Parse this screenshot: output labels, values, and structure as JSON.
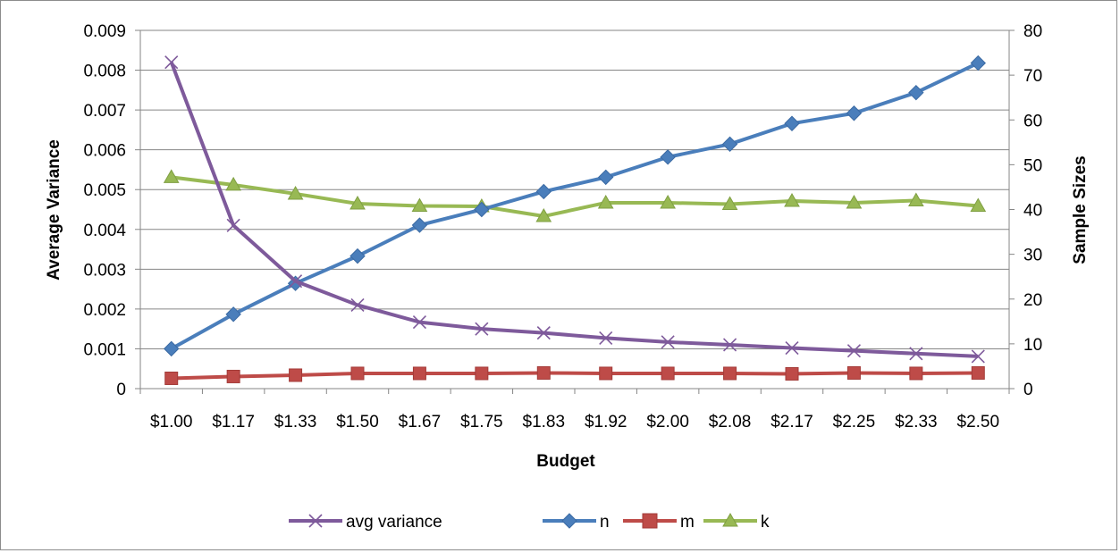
{
  "chart_data": {
    "type": "line",
    "title": "",
    "xlabel": "Budget",
    "ylabel_left": "Average Variance",
    "ylabel_right": "Sample Sizes",
    "categories": [
      "$1.00",
      "$1.17",
      "$1.33",
      "$1.50",
      "$1.67",
      "$1.75",
      "$1.83",
      "$1.92",
      "$2.00",
      "$2.08",
      "$2.17",
      "$2.25",
      "$2.33",
      "$2.50"
    ],
    "y_left": {
      "min": 0,
      "max": 0.009,
      "step": 0.001,
      "tick_labels": [
        "0",
        "0.001",
        "0.002",
        "0.003",
        "0.004",
        "0.005",
        "0.006",
        "0.007",
        "0.008",
        "0.009"
      ]
    },
    "y_right": {
      "min": 0,
      "max": 80,
      "step": 10,
      "tick_labels": [
        "0",
        "10",
        "20",
        "30",
        "40",
        "50",
        "60",
        "70",
        "80"
      ]
    },
    "grid": true,
    "legend_position": "bottom",
    "series": [
      {
        "name": "avg variance",
        "axis": "left",
        "color": "#7E5A9B",
        "marker": "x",
        "values": [
          0.0082,
          0.0041,
          0.0027,
          0.0021,
          0.00167,
          0.0015,
          0.0014,
          0.00127,
          0.00117,
          0.0011,
          0.00102,
          0.00095,
          0.00088,
          0.00081
        ]
      },
      {
        "name": "n",
        "axis": "right",
        "color": "#4A7EBB",
        "marker": "diamond",
        "values": [
          8.9,
          16.6,
          23.5,
          29.6,
          36.5,
          40.0,
          44.0,
          47.2,
          51.7,
          54.6,
          59.2,
          61.5,
          66.1,
          72.7
        ]
      },
      {
        "name": "m",
        "axis": "right",
        "color": "#BE4B48",
        "marker": "square",
        "values": [
          2.3,
          2.7,
          3.0,
          3.4,
          3.4,
          3.4,
          3.5,
          3.4,
          3.4,
          3.4,
          3.3,
          3.5,
          3.4,
          3.5
        ]
      },
      {
        "name": "k",
        "axis": "right",
        "color": "#98B954",
        "marker": "triangle",
        "values": [
          47.2,
          45.5,
          43.5,
          41.3,
          40.8,
          40.7,
          38.5,
          41.5,
          41.5,
          41.2,
          41.9,
          41.5,
          42.0,
          40.8
        ]
      }
    ]
  }
}
